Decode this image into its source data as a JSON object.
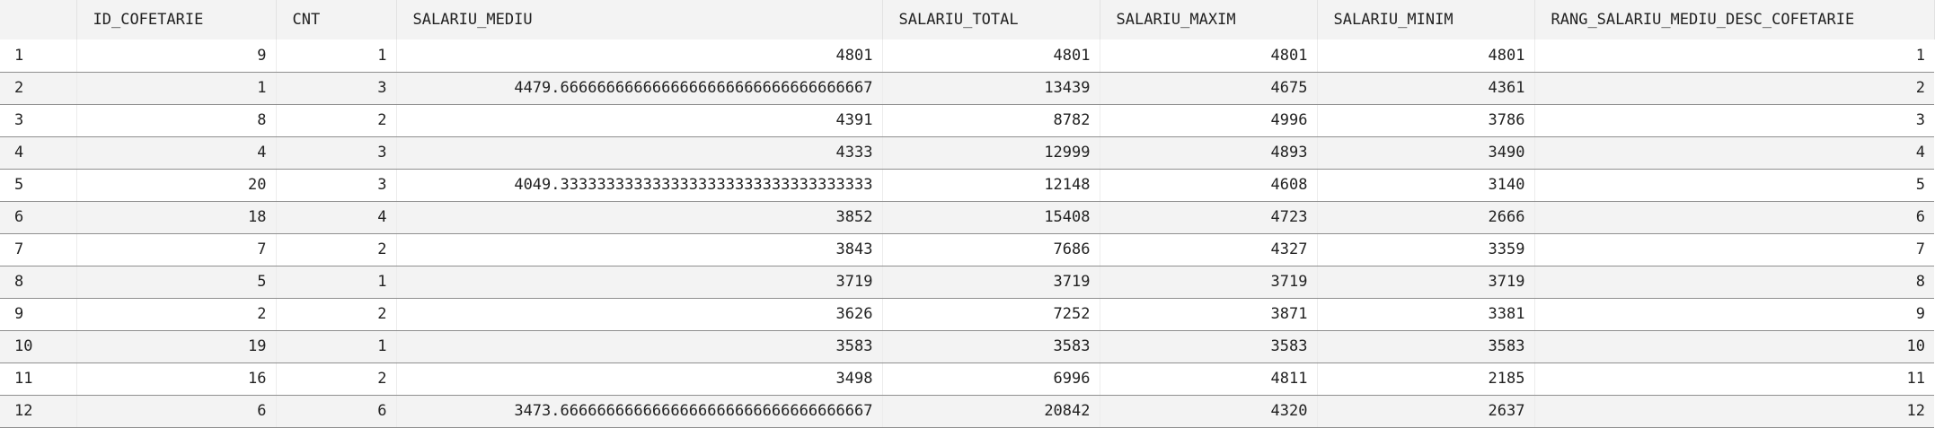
{
  "columns": [
    "",
    "ID_COFETARIE",
    "CNT",
    "SALARIU_MEDIU",
    "SALARIU_TOTAL",
    "SALARIU_MAXIM",
    "SALARIU_MINIM",
    "RANG_SALARIU_MEDIU_DESC_COFETARIE"
  ],
  "rows": [
    [
      "1",
      "9",
      "1",
      "4801",
      "4801",
      "4801",
      "4801",
      "1"
    ],
    [
      "2",
      "1",
      "3",
      "4479.6666666666666666666666666666666667",
      "13439",
      "4675",
      "4361",
      "2"
    ],
    [
      "3",
      "8",
      "2",
      "4391",
      "8782",
      "4996",
      "3786",
      "3"
    ],
    [
      "4",
      "4",
      "3",
      "4333",
      "12999",
      "4893",
      "3490",
      "4"
    ],
    [
      "5",
      "20",
      "3",
      "4049.3333333333333333333333333333333333",
      "12148",
      "4608",
      "3140",
      "5"
    ],
    [
      "6",
      "18",
      "4",
      "3852",
      "15408",
      "4723",
      "2666",
      "6"
    ],
    [
      "7",
      "7",
      "2",
      "3843",
      "7686",
      "4327",
      "3359",
      "7"
    ],
    [
      "8",
      "5",
      "1",
      "3719",
      "3719",
      "3719",
      "3719",
      "8"
    ],
    [
      "9",
      "2",
      "2",
      "3626",
      "7252",
      "3871",
      "3381",
      "9"
    ],
    [
      "10",
      "19",
      "1",
      "3583",
      "3583",
      "3583",
      "3583",
      "10"
    ],
    [
      "11",
      "16",
      "2",
      "3498",
      "6996",
      "4811",
      "2185",
      "11"
    ],
    [
      "12",
      "6",
      "6",
      "3473.6666666666666666666666666666666667",
      "20842",
      "4320",
      "2637",
      "12"
    ]
  ]
}
